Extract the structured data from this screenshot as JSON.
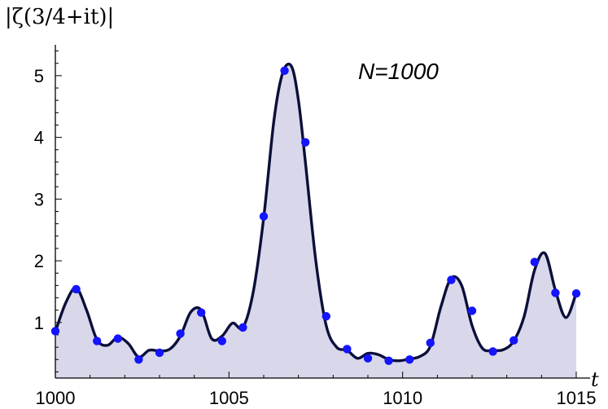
{
  "chart_data": {
    "type": "line",
    "title": "",
    "xlabel": "t",
    "ylabel": "|ζ(3/4+it)|",
    "annotation": "N=1000",
    "xlim": [
      1000,
      1015
    ],
    "ylim": [
      0.1,
      5.5
    ],
    "x_ticks": [
      "1000",
      "1005",
      "1010",
      "1015"
    ],
    "y_ticks": [
      "1",
      "2",
      "3",
      "4",
      "5"
    ],
    "colors": {
      "curve": "#0b0f3a",
      "fill": "#d8d8ea",
      "points": "#1414ff"
    },
    "curve": {
      "x": [
        1000.0,
        1000.3,
        1000.6,
        1000.9,
        1001.2,
        1001.5,
        1001.8,
        1002.1,
        1002.4,
        1002.7,
        1003.0,
        1003.3,
        1003.6,
        1003.9,
        1004.2,
        1004.5,
        1004.8,
        1005.1,
        1005.4,
        1005.7,
        1006.0,
        1006.3,
        1006.55,
        1006.8,
        1007.0,
        1007.2,
        1007.5,
        1007.8,
        1008.1,
        1008.4,
        1008.7,
        1009.0,
        1009.3,
        1009.6,
        1009.9,
        1010.2,
        1010.5,
        1010.8,
        1011.1,
        1011.4,
        1011.7,
        1012.0,
        1012.3,
        1012.6,
        1012.9,
        1013.2,
        1013.5,
        1013.8,
        1014.1,
        1014.4,
        1014.7,
        1015.0
      ],
      "y": [
        0.85,
        1.32,
        1.56,
        1.2,
        0.72,
        0.63,
        0.76,
        0.66,
        0.44,
        0.55,
        0.54,
        0.57,
        0.78,
        1.17,
        1.2,
        0.74,
        0.78,
        0.99,
        0.92,
        1.5,
        2.7,
        4.3,
        5.05,
        5.15,
        4.6,
        3.6,
        2.0,
        0.95,
        0.6,
        0.55,
        0.42,
        0.5,
        0.48,
        0.4,
        0.38,
        0.41,
        0.45,
        0.62,
        1.25,
        1.72,
        1.6,
        0.95,
        0.58,
        0.55,
        0.56,
        0.7,
        1.1,
        1.85,
        2.12,
        1.52,
        1.08,
        1.48
      ]
    },
    "points": {
      "x": [
        1000.0,
        1000.6,
        1001.2,
        1001.8,
        1002.4,
        1003.0,
        1003.6,
        1004.2,
        1004.8,
        1005.4,
        1006.0,
        1006.6,
        1007.2,
        1007.8,
        1008.4,
        1009.0,
        1009.6,
        1010.2,
        1010.8,
        1011.4,
        1012.0,
        1012.6,
        1013.2,
        1013.8,
        1014.4,
        1015.0
      ],
      "y": [
        0.86,
        1.54,
        0.7,
        0.74,
        0.4,
        0.51,
        0.82,
        1.16,
        0.7,
        0.92,
        2.72,
        5.08,
        3.92,
        1.1,
        0.57,
        0.42,
        0.38,
        0.4,
        0.67,
        1.69,
        1.19,
        0.53,
        0.71,
        1.98,
        1.48,
        1.47
      ]
    }
  }
}
